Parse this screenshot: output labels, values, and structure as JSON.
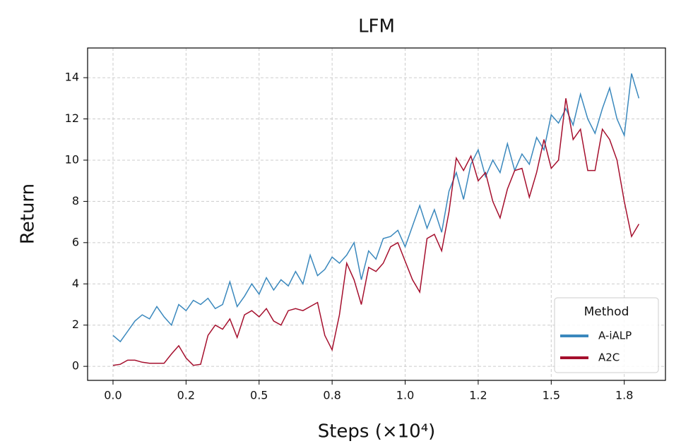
{
  "chart_data": {
    "type": "line",
    "title": "LFM",
    "x_label": "Steps (×10⁴)",
    "y_label": "Return",
    "x": [
      0,
      0.025,
      0.05,
      0.075,
      0.1,
      0.125,
      0.15,
      0.175,
      0.2,
      0.225,
      0.25,
      0.275,
      0.3,
      0.325,
      0.35,
      0.375,
      0.4,
      0.425,
      0.45,
      0.475,
      0.5,
      0.525,
      0.55,
      0.575,
      0.6,
      0.625,
      0.65,
      0.675,
      0.7,
      0.725,
      0.75,
      0.775,
      0.8,
      0.825,
      0.85,
      0.875,
      0.9,
      0.925,
      0.95,
      0.975,
      1.0,
      1.025,
      1.05,
      1.075,
      1.1,
      1.125,
      1.15,
      1.175,
      1.2,
      1.225,
      1.25,
      1.275,
      1.3,
      1.325,
      1.35,
      1.375,
      1.4,
      1.425,
      1.45,
      1.475,
      1.5,
      1.525,
      1.55,
      1.575,
      1.6,
      1.625,
      1.65,
      1.675,
      1.7,
      1.725,
      1.75,
      1.775,
      1.8
    ],
    "series": [
      {
        "name": "A-iALP",
        "color": "#3a88bd",
        "values": [
          1.5,
          1.2,
          1.7,
          2.2,
          2.5,
          2.3,
          2.9,
          2.4,
          2.0,
          3.0,
          2.7,
          3.2,
          3.0,
          3.3,
          2.8,
          3.0,
          4.1,
          2.9,
          3.4,
          4.0,
          3.5,
          4.3,
          3.7,
          4.2,
          3.9,
          4.6,
          4.0,
          5.4,
          4.4,
          4.7,
          5.3,
          5.0,
          5.4,
          6.0,
          4.2,
          5.6,
          5.2,
          6.2,
          6.3,
          6.6,
          5.8,
          6.8,
          7.8,
          6.7,
          7.6,
          6.5,
          8.5,
          9.4,
          8.1,
          9.8,
          10.5,
          9.2,
          10.0,
          9.4,
          10.8,
          9.5,
          10.3,
          9.8,
          11.1,
          10.5,
          12.2,
          11.8,
          12.5,
          11.7,
          13.2,
          12.0,
          11.3,
          12.5,
          13.5,
          12.0,
          11.2,
          14.2,
          13.0
        ]
      },
      {
        "name": "A2C",
        "color": "#a50f2d",
        "values": [
          0.05,
          0.1,
          0.3,
          0.3,
          0.2,
          0.15,
          0.15,
          0.15,
          0.6,
          1.0,
          0.4,
          0.05,
          0.1,
          1.5,
          2.0,
          1.8,
          2.3,
          1.4,
          2.5,
          2.7,
          2.4,
          2.8,
          2.2,
          2.0,
          2.7,
          2.8,
          2.7,
          2.9,
          3.1,
          1.5,
          0.8,
          2.5,
          5.0,
          4.2,
          3.0,
          4.8,
          4.6,
          5.0,
          5.8,
          6.0,
          5.1,
          4.2,
          3.6,
          6.2,
          6.4,
          5.6,
          7.5,
          10.1,
          9.5,
          10.2,
          9.0,
          9.4,
          8.0,
          7.2,
          8.6,
          9.5,
          9.6,
          8.2,
          9.4,
          11.0,
          9.6,
          10.0,
          13.0,
          11.0,
          11.5,
          9.5,
          9.5,
          11.5,
          11.0,
          10.0,
          8.0,
          6.3,
          6.9
        ]
      }
    ],
    "xlim": [
      -0.087,
      1.891
    ],
    "ylim": [
      -0.68,
      15.44
    ],
    "xticks": [
      {
        "value": 0,
        "label": "0.0"
      },
      {
        "value": 0.25,
        "label": "0.2"
      },
      {
        "value": 0.5,
        "label": "0.5"
      },
      {
        "value": 0.75,
        "label": "0.8"
      },
      {
        "value": 1,
        "label": "1.0"
      },
      {
        "value": 1.25,
        "label": "1.2"
      },
      {
        "value": 1.5,
        "label": "1.5"
      },
      {
        "value": 1.75,
        "label": "1.8"
      }
    ],
    "yticks": [
      0,
      2,
      4,
      6,
      8,
      10,
      12,
      14
    ],
    "grid": true,
    "legend_title": "Method",
    "legend_position": "lower right"
  }
}
